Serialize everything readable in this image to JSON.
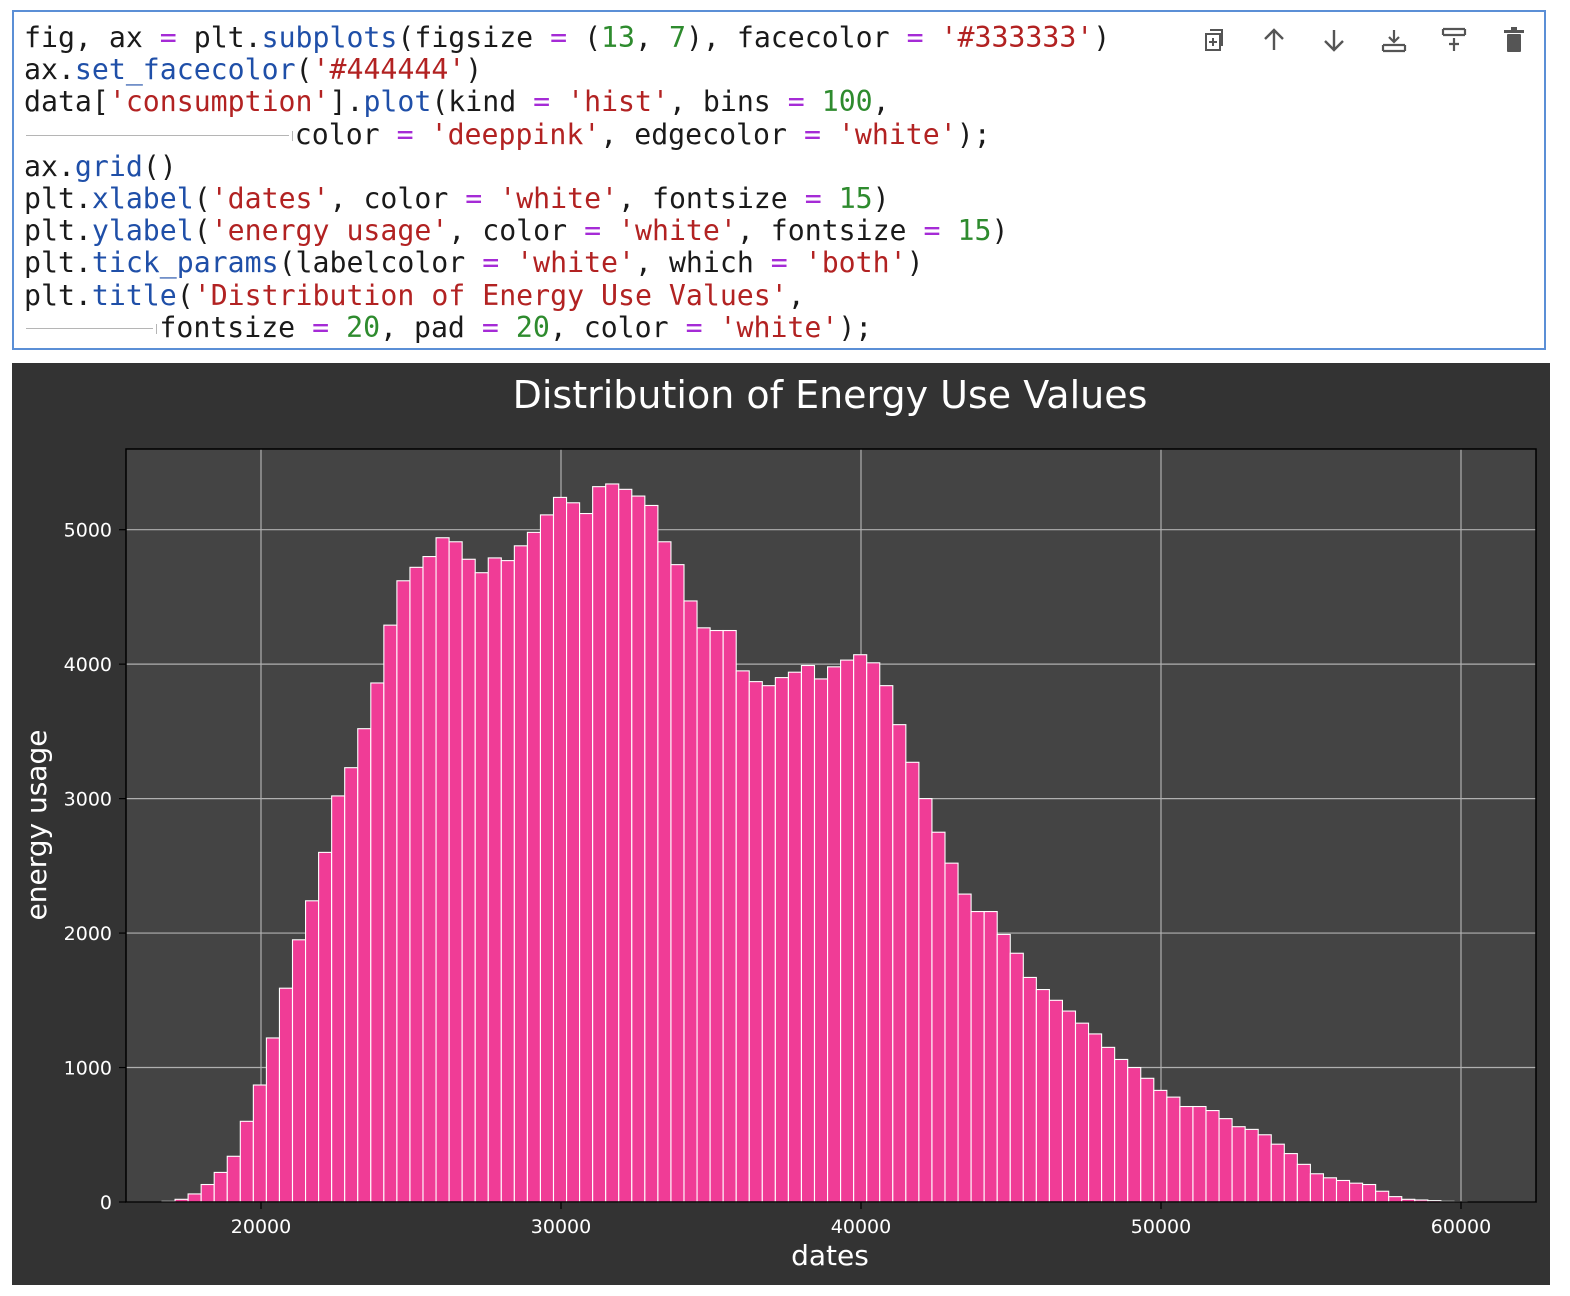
{
  "cell": {
    "code_lines": [
      [
        {
          "t": "fig, ax "
        },
        {
          "t": "=",
          "c": "op"
        },
        {
          "t": " plt."
        },
        {
          "t": "subplots",
          "c": "attr"
        },
        {
          "t": "(figsize "
        },
        {
          "t": "=",
          "c": "op"
        },
        {
          "t": " ("
        },
        {
          "t": "13",
          "c": "num"
        },
        {
          "t": ", "
        },
        {
          "t": "7",
          "c": "num"
        },
        {
          "t": "), facecolor "
        },
        {
          "t": "=",
          "c": "op"
        },
        {
          "t": " "
        },
        {
          "t": "'#333333'",
          "c": "str"
        },
        {
          "t": ")"
        }
      ],
      [
        {
          "t": "ax."
        },
        {
          "t": "set_facecolor",
          "c": "attr"
        },
        {
          "t": "("
        },
        {
          "t": "'#444444'",
          "c": "str"
        },
        {
          "t": ")"
        }
      ],
      [
        {
          "t": "data["
        },
        {
          "t": "'consumption'",
          "c": "str"
        },
        {
          "t": "]."
        },
        {
          "t": "plot",
          "c": "attr"
        },
        {
          "t": "(kind "
        },
        {
          "t": "=",
          "c": "op"
        },
        {
          "t": " "
        },
        {
          "t": "'hist'",
          "c": "str"
        },
        {
          "t": ", bins "
        },
        {
          "t": "=",
          "c": "op"
        },
        {
          "t": " "
        },
        {
          "t": "100",
          "c": "num"
        },
        {
          "t": ","
        }
      ],
      [
        {
          "t": "",
          "tabs": 4
        },
        {
          "t": "color "
        },
        {
          "t": "=",
          "c": "op"
        },
        {
          "t": " "
        },
        {
          "t": "'deeppink'",
          "c": "str"
        },
        {
          "t": ", edgecolor "
        },
        {
          "t": "=",
          "c": "op"
        },
        {
          "t": " "
        },
        {
          "t": "'white'",
          "c": "str"
        },
        {
          "t": ");"
        }
      ],
      [
        {
          "t": "ax."
        },
        {
          "t": "grid",
          "c": "attr"
        },
        {
          "t": "()"
        }
      ],
      [
        {
          "t": "plt."
        },
        {
          "t": "xlabel",
          "c": "attr"
        },
        {
          "t": "("
        },
        {
          "t": "'dates'",
          "c": "str"
        },
        {
          "t": ", color "
        },
        {
          "t": "=",
          "c": "op"
        },
        {
          "t": " "
        },
        {
          "t": "'white'",
          "c": "str"
        },
        {
          "t": ", fontsize "
        },
        {
          "t": "=",
          "c": "op"
        },
        {
          "t": " "
        },
        {
          "t": "15",
          "c": "num"
        },
        {
          "t": ")"
        }
      ],
      [
        {
          "t": "plt."
        },
        {
          "t": "ylabel",
          "c": "attr"
        },
        {
          "t": "("
        },
        {
          "t": "'energy usage'",
          "c": "str"
        },
        {
          "t": ", color "
        },
        {
          "t": "=",
          "c": "op"
        },
        {
          "t": " "
        },
        {
          "t": "'white'",
          "c": "str"
        },
        {
          "t": ", fontsize "
        },
        {
          "t": "=",
          "c": "op"
        },
        {
          "t": " "
        },
        {
          "t": "15",
          "c": "num"
        },
        {
          "t": ")"
        }
      ],
      [
        {
          "t": "plt."
        },
        {
          "t": "tick_params",
          "c": "attr"
        },
        {
          "t": "(labelcolor "
        },
        {
          "t": "=",
          "c": "op"
        },
        {
          "t": " "
        },
        {
          "t": "'white'",
          "c": "str"
        },
        {
          "t": ", which "
        },
        {
          "t": "=",
          "c": "op"
        },
        {
          "t": " "
        },
        {
          "t": "'both'",
          "c": "str"
        },
        {
          "t": ")"
        }
      ],
      [
        {
          "t": "plt."
        },
        {
          "t": "title",
          "c": "attr"
        },
        {
          "t": "("
        },
        {
          "t": "'Distribution of Energy Use Values'",
          "c": "str"
        },
        {
          "t": ","
        }
      ],
      [
        {
          "t": "",
          "tabs": 2
        },
        {
          "t": "fontsize "
        },
        {
          "t": "=",
          "c": "op"
        },
        {
          "t": " "
        },
        {
          "t": "20",
          "c": "num"
        },
        {
          "t": ", pad "
        },
        {
          "t": "=",
          "c": "op"
        },
        {
          "t": " "
        },
        {
          "t": "20",
          "c": "num"
        },
        {
          "t": ", color "
        },
        {
          "t": "=",
          "c": "op"
        },
        {
          "t": " "
        },
        {
          "t": "'white'",
          "c": "str"
        },
        {
          "t": ");"
        }
      ]
    ],
    "toolbar": [
      "duplicate-icon",
      "move-up-icon",
      "move-down-icon",
      "insert-above-icon",
      "insert-below-icon",
      "delete-icon"
    ]
  },
  "colors": {
    "figure_bg": "#333333",
    "axes_bg": "#444444",
    "bar_fill": "#f03c96",
    "bar_edge": "#ffffff",
    "grid": "#b0b0b0",
    "text": "#ffffff"
  },
  "chart_data": {
    "type": "bar",
    "title": "Distribution of Energy Use Values",
    "xlabel": "dates",
    "ylabel": "energy usage",
    "xlim": [
      15500,
      62500
    ],
    "ylim": [
      0,
      5600
    ],
    "xticks": [
      20000,
      30000,
      40000,
      50000,
      60000
    ],
    "yticks": [
      0,
      1000,
      2000,
      3000,
      4000,
      5000
    ],
    "grid": true,
    "bin_start": 16700,
    "bin_width": 435,
    "values": [
      5,
      20,
      60,
      130,
      220,
      340,
      600,
      870,
      1220,
      1590,
      1950,
      2240,
      2600,
      3020,
      3230,
      3520,
      3860,
      4290,
      4620,
      4720,
      4800,
      4940,
      4910,
      4780,
      4680,
      4790,
      4770,
      4880,
      4980,
      5110,
      5240,
      5200,
      5120,
      5320,
      5340,
      5300,
      5250,
      5180,
      4910,
      4740,
      4470,
      4270,
      4250,
      4250,
      3950,
      3870,
      3840,
      3900,
      3940,
      3990,
      3890,
      3980,
      4030,
      4070,
      4010,
      3840,
      3550,
      3270,
      3000,
      2750,
      2520,
      2290,
      2160,
      2160,
      1990,
      1850,
      1670,
      1580,
      1500,
      1420,
      1330,
      1250,
      1150,
      1060,
      1000,
      920,
      830,
      780,
      710,
      710,
      680,
      620,
      560,
      540,
      500,
      430,
      360,
      280,
      210,
      180,
      160,
      140,
      130,
      80,
      40,
      20,
      15,
      10,
      5,
      2
    ]
  }
}
